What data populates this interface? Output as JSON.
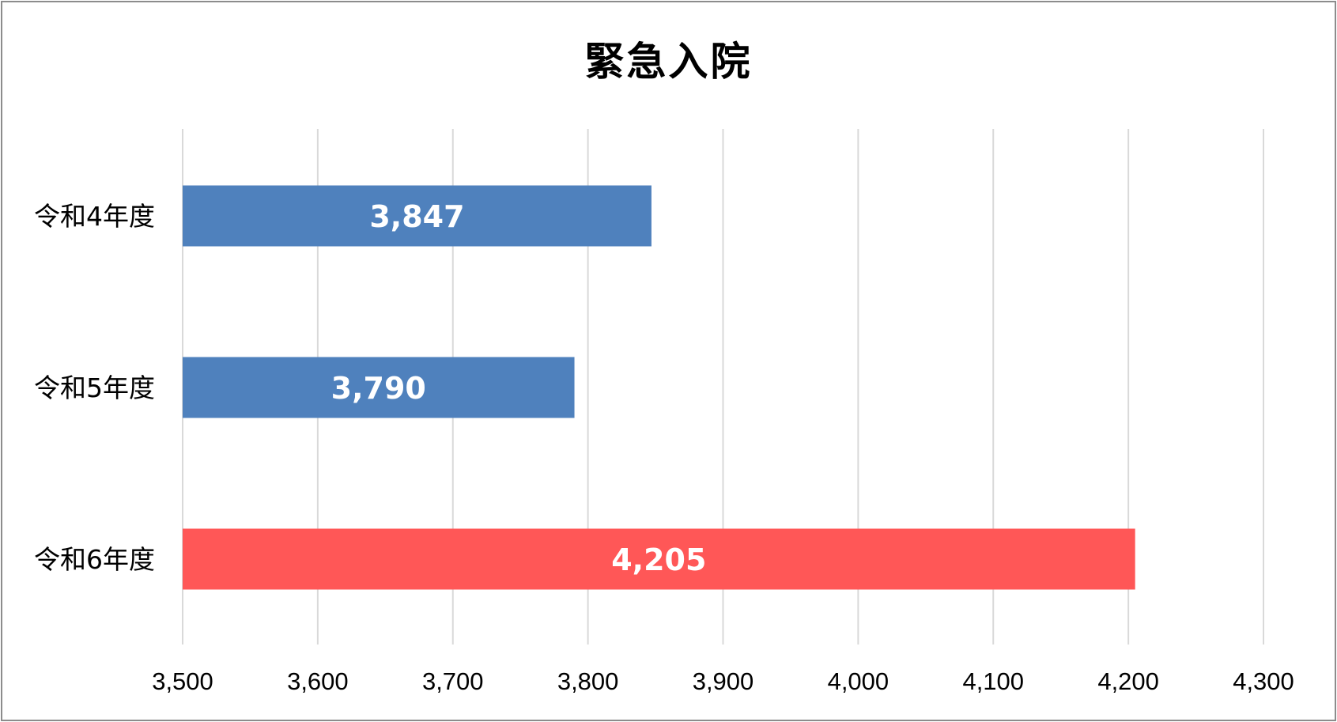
{
  "chart_data": {
    "type": "bar",
    "orientation": "horizontal",
    "title": "緊急入院",
    "categories": [
      "令和4年度",
      "令和5年度",
      "令和6年度"
    ],
    "values": [
      3847,
      3790,
      4205
    ],
    "data_labels": [
      "3,847",
      "3,790",
      "4,205"
    ],
    "bar_colors": [
      "#4f81bd",
      "#4f81bd",
      "#ff5757"
    ],
    "xlim": [
      3500,
      4300
    ],
    "x_ticks": [
      3500,
      3600,
      3700,
      3800,
      3900,
      4000,
      4100,
      4200,
      4300
    ],
    "x_tick_labels": [
      "3,500",
      "3,600",
      "3,700",
      "3,800",
      "3,900",
      "4,000",
      "4,100",
      "4,200",
      "4,300"
    ],
    "xlabel": "",
    "ylabel": "",
    "grid": "vertical",
    "grid_color": "#d9d9d9",
    "legend": "none"
  }
}
